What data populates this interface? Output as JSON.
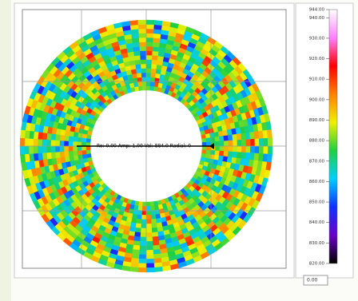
{
  "chart_data": {
    "type": "colorbar",
    "annotation": "Ro: 0.00 Amp: 1.00 Val: 884.0 Radial: 0",
    "min_box": "0.00",
    "zlim": [
      820,
      944
    ],
    "zticks": [
      {
        "value": 944,
        "label": "944.00"
      },
      {
        "value": 940,
        "label": "940.00"
      },
      {
        "value": 930,
        "label": "930.00"
      },
      {
        "value": 920,
        "label": "920.00"
      },
      {
        "value": 910,
        "label": "910.00"
      },
      {
        "value": 900,
        "label": "900.00"
      },
      {
        "value": 890,
        "label": "890.00"
      },
      {
        "value": 880,
        "label": "880.00"
      },
      {
        "value": 870,
        "label": "870.00"
      },
      {
        "value": 860,
        "label": "860.00"
      },
      {
        "value": 850,
        "label": "850.00"
      },
      {
        "value": 840,
        "label": "840.00"
      },
      {
        "value": 830,
        "label": "830.00"
      },
      {
        "value": 820,
        "label": "820.00"
      }
    ],
    "colors": [
      "#000000",
      "#6a00c8",
      "#1030ff",
      "#00d0ff",
      "#20d040",
      "#f0f000",
      "#ff8000",
      "#ff0000",
      "#ff80ff",
      "#ffffff"
    ]
  }
}
